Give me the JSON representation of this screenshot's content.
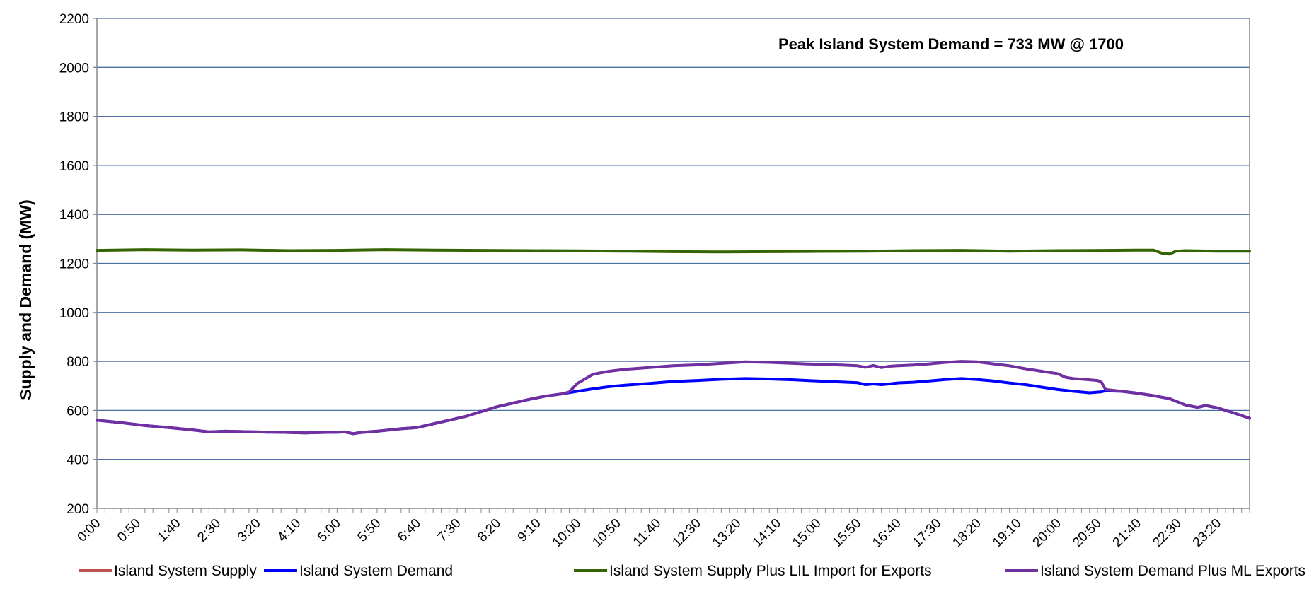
{
  "chart_data": {
    "type": "line",
    "title": "",
    "annotation": "Peak Island System Demand = 733 MW @ 1700",
    "xlabel": "",
    "ylabel": "Supply and Demand (MW)",
    "ylim": [
      200,
      2200
    ],
    "yticks": [
      200,
      400,
      600,
      800,
      1000,
      1200,
      1400,
      1600,
      1800,
      2000,
      2200
    ],
    "grid": true,
    "legend_position": "bottom",
    "x_tick_labels": [
      "0:00",
      "0:50",
      "1:40",
      "2:30",
      "3:20",
      "4:10",
      "5:00",
      "5:50",
      "6:40",
      "7:30",
      "8:20",
      "9:10",
      "10:00",
      "10:50",
      "11:40",
      "12:30",
      "13:20",
      "14:10",
      "15:00",
      "15:50",
      "16:40",
      "17:30",
      "18:20",
      "19:10",
      "20:00",
      "20:50",
      "21:40",
      "22:30",
      "23:20"
    ],
    "x_range_minutes": [
      0,
      1440
    ],
    "series": [
      {
        "name": "Island System Supply",
        "color": "#C0504D",
        "points": []
      },
      {
        "name": "Island System Demand",
        "color": "#0000FF",
        "points": [
          [
            0,
            560
          ],
          [
            30,
            550
          ],
          [
            60,
            538
          ],
          [
            90,
            530
          ],
          [
            120,
            520
          ],
          [
            140,
            512
          ],
          [
            160,
            515
          ],
          [
            200,
            512
          ],
          [
            240,
            510
          ],
          [
            260,
            508
          ],
          [
            280,
            510
          ],
          [
            300,
            511
          ],
          [
            310,
            512
          ],
          [
            320,
            505
          ],
          [
            330,
            510
          ],
          [
            350,
            515
          ],
          [
            380,
            525
          ],
          [
            400,
            530
          ],
          [
            420,
            545
          ],
          [
            440,
            560
          ],
          [
            460,
            575
          ],
          [
            480,
            595
          ],
          [
            500,
            615
          ],
          [
            520,
            630
          ],
          [
            540,
            645
          ],
          [
            560,
            658
          ],
          [
            580,
            667
          ],
          [
            600,
            678
          ],
          [
            620,
            688
          ],
          [
            640,
            697
          ],
          [
            660,
            703
          ],
          [
            690,
            710
          ],
          [
            720,
            718
          ],
          [
            750,
            722
          ],
          [
            780,
            727
          ],
          [
            810,
            730
          ],
          [
            840,
            728
          ],
          [
            870,
            725
          ],
          [
            900,
            720
          ],
          [
            930,
            716
          ],
          [
            950,
            713
          ],
          [
            960,
            705
          ],
          [
            970,
            708
          ],
          [
            980,
            705
          ],
          [
            990,
            708
          ],
          [
            1000,
            712
          ],
          [
            1020,
            715
          ],
          [
            1040,
            720
          ],
          [
            1060,
            726
          ],
          [
            1080,
            730
          ],
          [
            1100,
            726
          ],
          [
            1120,
            720
          ],
          [
            1140,
            712
          ],
          [
            1160,
            705
          ],
          [
            1180,
            695
          ],
          [
            1200,
            685
          ],
          [
            1220,
            678
          ],
          [
            1240,
            672
          ],
          [
            1255,
            676
          ],
          [
            1260,
            680
          ],
          [
            1280,
            678
          ],
          [
            1300,
            670
          ],
          [
            1320,
            660
          ],
          [
            1340,
            648
          ],
          [
            1350,
            635
          ],
          [
            1360,
            622
          ],
          [
            1375,
            612
          ],
          [
            1385,
            620
          ],
          [
            1400,
            610
          ],
          [
            1420,
            590
          ],
          [
            1440,
            568
          ]
        ]
      },
      {
        "name": "Island System Supply Plus LIL Import for Exports",
        "color": "#336600",
        "points": [
          [
            0,
            1253
          ],
          [
            60,
            1256
          ],
          [
            120,
            1254
          ],
          [
            180,
            1255
          ],
          [
            240,
            1252
          ],
          [
            300,
            1253
          ],
          [
            360,
            1256
          ],
          [
            420,
            1254
          ],
          [
            480,
            1253
          ],
          [
            540,
            1252
          ],
          [
            600,
            1251
          ],
          [
            660,
            1250
          ],
          [
            720,
            1248
          ],
          [
            780,
            1247
          ],
          [
            840,
            1248
          ],
          [
            900,
            1249
          ],
          [
            960,
            1250
          ],
          [
            1020,
            1252
          ],
          [
            1080,
            1253
          ],
          [
            1140,
            1250
          ],
          [
            1200,
            1252
          ],
          [
            1260,
            1253
          ],
          [
            1300,
            1254
          ],
          [
            1320,
            1254
          ],
          [
            1330,
            1242
          ],
          [
            1340,
            1238
          ],
          [
            1348,
            1250
          ],
          [
            1360,
            1252
          ],
          [
            1400,
            1250
          ],
          [
            1440,
            1250
          ]
        ]
      },
      {
        "name": "Island System Demand Plus ML Exports",
        "color": "#7030A0",
        "points": [
          [
            0,
            560
          ],
          [
            30,
            550
          ],
          [
            60,
            538
          ],
          [
            90,
            530
          ],
          [
            120,
            520
          ],
          [
            140,
            512
          ],
          [
            160,
            515
          ],
          [
            200,
            512
          ],
          [
            240,
            510
          ],
          [
            260,
            508
          ],
          [
            280,
            510
          ],
          [
            300,
            511
          ],
          [
            310,
            512
          ],
          [
            320,
            505
          ],
          [
            330,
            510
          ],
          [
            350,
            515
          ],
          [
            380,
            525
          ],
          [
            400,
            530
          ],
          [
            420,
            545
          ],
          [
            440,
            560
          ],
          [
            460,
            575
          ],
          [
            480,
            595
          ],
          [
            500,
            615
          ],
          [
            520,
            630
          ],
          [
            540,
            645
          ],
          [
            560,
            658
          ],
          [
            580,
            667
          ],
          [
            590,
            675
          ],
          [
            600,
            710
          ],
          [
            620,
            748
          ],
          [
            640,
            760
          ],
          [
            660,
            768
          ],
          [
            690,
            775
          ],
          [
            720,
            782
          ],
          [
            750,
            786
          ],
          [
            780,
            792
          ],
          [
            810,
            798
          ],
          [
            840,
            796
          ],
          [
            870,
            792
          ],
          [
            900,
            788
          ],
          [
            930,
            785
          ],
          [
            950,
            782
          ],
          [
            960,
            776
          ],
          [
            970,
            783
          ],
          [
            980,
            775
          ],
          [
            990,
            780
          ],
          [
            1000,
            782
          ],
          [
            1020,
            785
          ],
          [
            1040,
            790
          ],
          [
            1060,
            796
          ],
          [
            1080,
            800
          ],
          [
            1100,
            798
          ],
          [
            1120,
            790
          ],
          [
            1140,
            782
          ],
          [
            1160,
            770
          ],
          [
            1180,
            760
          ],
          [
            1200,
            750
          ],
          [
            1210,
            735
          ],
          [
            1220,
            730
          ],
          [
            1240,
            725
          ],
          [
            1250,
            722
          ],
          [
            1255,
            715
          ],
          [
            1260,
            685
          ],
          [
            1280,
            678
          ],
          [
            1300,
            670
          ],
          [
            1320,
            660
          ],
          [
            1340,
            648
          ],
          [
            1350,
            635
          ],
          [
            1360,
            622
          ],
          [
            1375,
            612
          ],
          [
            1385,
            620
          ],
          [
            1400,
            610
          ],
          [
            1420,
            590
          ],
          [
            1440,
            568
          ]
        ]
      }
    ]
  }
}
